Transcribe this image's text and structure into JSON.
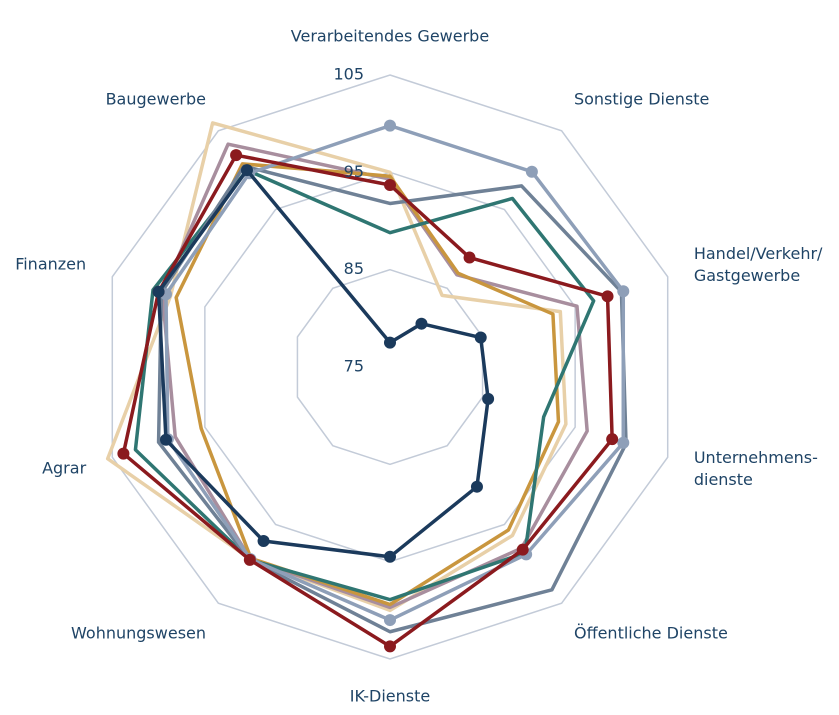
{
  "chart_data": {
    "type": "radar",
    "categories": [
      "Verarbeitendes Gewerbe",
      "Sonstige Dienste",
      "Handel/Verkehr/\nGastgewerbe",
      "Unternehmens-\ndienste",
      "Öffentliche Dienste",
      "IK-Dienste",
      "Wohnungswesen",
      "Agrar",
      "Finanzen",
      "Baugewerbe"
    ],
    "ylim": [
      75,
      105
    ],
    "yticks": [
      75,
      85,
      95,
      105
    ],
    "grid": true,
    "grid_color": "#c3cbd8",
    "series": [
      {
        "color": "#e8d0a8",
        "marker": false,
        "values": [
          95,
          84.1,
          93.4,
          94,
          96.4,
          100,
          99.4,
          105.5,
          98.7,
          106
        ]
      },
      {
        "color": "#a88e9e",
        "marker": false,
        "values": [
          94.3,
          86.7,
          95.2,
          96.3,
          98,
          99.7,
          99.4,
          98.2,
          99.6,
          103.3
        ]
      },
      {
        "color": "#c9963e",
        "marker": false,
        "values": [
          94.6,
          86.9,
          92.6,
          93.2,
          95.7,
          99.4,
          99.3,
          95.4,
          98.1,
          100.8
        ]
      },
      {
        "color": "#2f7672",
        "marker": false,
        "values": [
          88.8,
          96.4,
          97,
          91.6,
          98.6,
          98.9,
          99.5,
          102.5,
          100.6,
          100
        ]
      },
      {
        "color": "#6f8196",
        "marker": false,
        "values": [
          91.8,
          98,
          100,
          100.5,
          103.3,
          102.2,
          99.5,
          100,
          99.7,
          100.5
        ]
      },
      {
        "color": "#8e9fb8",
        "marker": true,
        "values": [
          99.8,
          99.8,
          100.2,
          100.2,
          98.8,
          101,
          99.4,
          99,
          99.2,
          99.6
        ]
      },
      {
        "color": "#8b1a1e",
        "marker": true,
        "values": [
          93.7,
          88.9,
          98.5,
          99,
          98.2,
          103.7,
          99.5,
          103.8,
          100,
          101.9
        ]
      },
      {
        "color": "#1b3a5c",
        "marker": true,
        "values": [
          77.5,
          80.5,
          84.8,
          85.6,
          90.2,
          94.5,
          97.1,
          99.2,
          100,
          100
        ]
      }
    ]
  }
}
